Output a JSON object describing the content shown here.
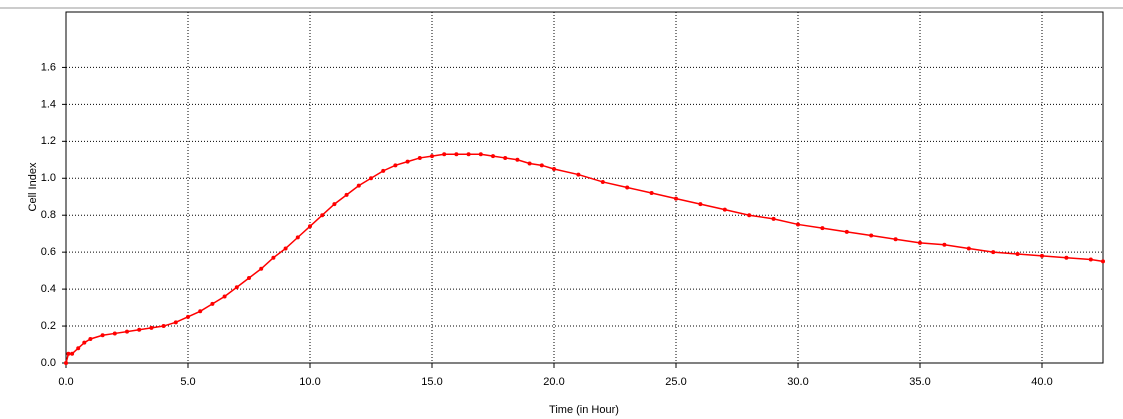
{
  "chart_data": {
    "type": "line",
    "x_label": "Time (in Hour)",
    "y_label": "Cell Index",
    "x": [
      0,
      0.1,
      0.25,
      0.5,
      0.75,
      1,
      1.5,
      2,
      2.5,
      3,
      3.5,
      4,
      4.5,
      5,
      5.5,
      6,
      6.5,
      7,
      7.5,
      8,
      8.5,
      9,
      9.5,
      10,
      10.5,
      11,
      11.5,
      12,
      12.5,
      13,
      13.5,
      14,
      14.5,
      15,
      15.5,
      16,
      16.5,
      17,
      17.5,
      18,
      18.5,
      19,
      19.5,
      20,
      21,
      22,
      23,
      24,
      25,
      26,
      27,
      28,
      29,
      30,
      31,
      32,
      33,
      34,
      35,
      36,
      37,
      38,
      39,
      40,
      41,
      42,
      42.5
    ],
    "series": [
      {
        "name": null,
        "color": "#ff0000",
        "values": [
          0.0,
          0.05,
          0.05,
          0.08,
          0.11,
          0.13,
          0.15,
          0.16,
          0.17,
          0.18,
          0.19,
          0.2,
          0.22,
          0.25,
          0.28,
          0.32,
          0.36,
          0.41,
          0.46,
          0.51,
          0.57,
          0.62,
          0.68,
          0.74,
          0.8,
          0.86,
          0.91,
          0.96,
          1.0,
          1.04,
          1.07,
          1.09,
          1.11,
          1.12,
          1.13,
          1.13,
          1.13,
          1.13,
          1.12,
          1.11,
          1.1,
          1.08,
          1.07,
          1.05,
          1.02,
          0.98,
          0.95,
          0.92,
          0.89,
          0.86,
          0.83,
          0.8,
          0.78,
          0.75,
          0.73,
          0.71,
          0.69,
          0.67,
          0.65,
          0.64,
          0.62,
          0.6,
          0.59,
          0.58,
          0.57,
          0.56,
          0.55
        ]
      }
    ],
    "xlim": [
      0,
      42.5
    ],
    "ylim": [
      0,
      1.9
    ],
    "xticks": [
      {
        "value": 0,
        "label": "0.0"
      },
      {
        "value": 5,
        "label": "5.0"
      },
      {
        "value": 10,
        "label": "10.0"
      },
      {
        "value": 15,
        "label": "15.0"
      },
      {
        "value": 20,
        "label": "20.0"
      },
      {
        "value": 25,
        "label": "25.0"
      },
      {
        "value": 30,
        "label": "30.0"
      },
      {
        "value": 35,
        "label": "35.0"
      },
      {
        "value": 40,
        "label": "40.0"
      }
    ],
    "yticks": [
      {
        "value": 0,
        "label": "0.0"
      },
      0.2,
      0.4,
      0.6,
      0.8,
      {
        "value": 1,
        "label": "1.0"
      },
      1.2,
      1.4,
      1.6
    ],
    "grid": true
  }
}
